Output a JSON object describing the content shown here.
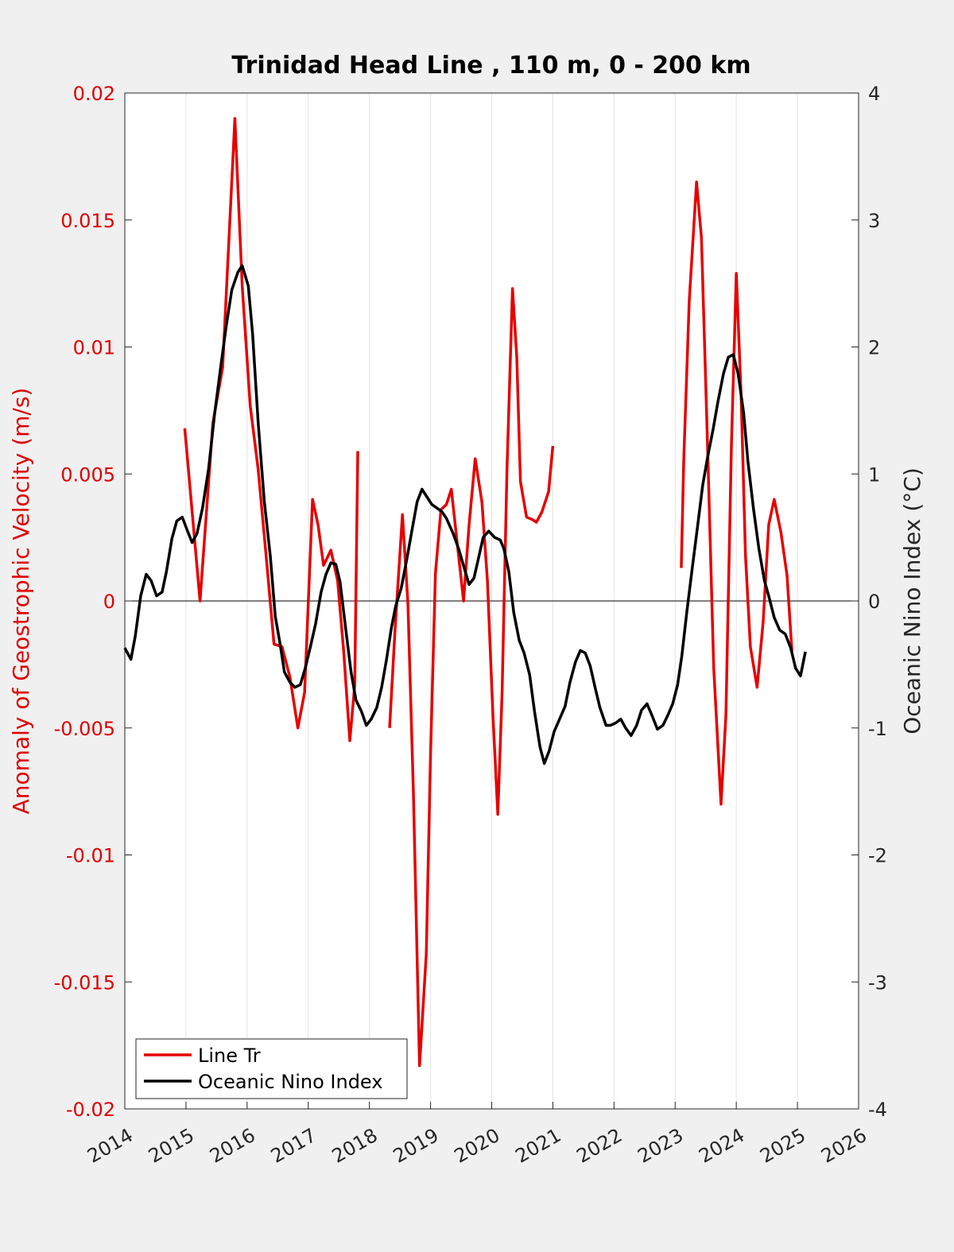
{
  "chart_data": {
    "type": "line",
    "title": "Trinidad Head Line , 110 m, 0 - 200 km",
    "ylabel": "Anomaly of Geostrophic Velocity (m/s)",
    "y2label": "Oceanic Nino Index (°C)",
    "xlim": [
      2014,
      2026
    ],
    "xticks": [
      2014,
      2015,
      2016,
      2017,
      2018,
      2019,
      2020,
      2021,
      2022,
      2023,
      2024,
      2025,
      2026
    ],
    "ylim": [
      -0.02,
      0.02
    ],
    "yticks": [
      -0.02,
      -0.015,
      -0.01,
      -0.005,
      0,
      0.005,
      0.01,
      0.015,
      0.02
    ],
    "y2lim": [
      -4,
      4
    ],
    "y2ticks": [
      -4,
      -3,
      -2,
      -1,
      0,
      1,
      2,
      3,
      4
    ],
    "grid": "x",
    "legend": "lower left",
    "series": [
      {
        "name": "Line Tr",
        "color": "#e60000",
        "axis": "y",
        "x": [
          2014.98,
          2015.23,
          2015.44,
          2015.6,
          2015.8,
          2015.92,
          2016.05,
          2016.18,
          2016.31,
          2016.44,
          2016.57,
          2016.7,
          2016.83,
          2016.94,
          2017.07,
          2017.16,
          2017.25,
          2017.37,
          2017.48,
          2017.58,
          2017.68,
          2017.76,
          2017.81,
          2018.0,
          2018.33,
          2018.42,
          2018.54,
          2018.63,
          2018.72,
          2018.82,
          2018.93,
          2019.0,
          2019.08,
          2019.17,
          2019.26,
          2019.34,
          2019.43,
          2019.54,
          2019.63,
          2019.73,
          2019.84,
          2019.93,
          2020.02,
          2020.1,
          2020.17,
          2020.25,
          2020.34,
          2020.41,
          2020.47,
          2020.57,
          2020.67,
          2020.73,
          2020.82,
          2020.93,
          2021.0,
          2022.0,
          2023.1,
          2023.14,
          2023.23,
          2023.35,
          2023.43,
          2023.53,
          2023.63,
          2023.75,
          2023.83,
          2023.92,
          2024.0,
          2024.08,
          2024.15,
          2024.23,
          2024.34,
          2024.44,
          2024.53,
          2024.62,
          2024.73,
          2024.83,
          2024.91
        ],
        "values": [
          0.0068,
          0,
          0.007,
          0.0092,
          0.019,
          0.0124,
          0.0077,
          0.0052,
          0.0018,
          -0.0017,
          -0.0018,
          -0.003,
          -0.005,
          -0.0036,
          0.004,
          0.003,
          0.0014,
          0.002,
          0.0008,
          -0.002,
          -0.0055,
          -0.0033,
          0.0059,
          null,
          -0.005,
          -0.0011,
          0.0034,
          -0.0001,
          -0.0076,
          -0.0183,
          -0.0139,
          -0.006,
          0.0011,
          0.0036,
          0.0038,
          0.0044,
          0.0024,
          0,
          0.003,
          0.0056,
          0.0039,
          0.0008,
          -0.0045,
          -0.0084,
          -0.0036,
          0.0052,
          0.0123,
          0.0096,
          0.0047,
          0.0033,
          0.0032,
          0.0031,
          0.0035,
          0.0043,
          0.0061,
          null,
          0.0013,
          0.0055,
          0.0118,
          0.0165,
          0.0143,
          0.0061,
          -0.0026,
          -0.008,
          -0.0045,
          0.0061,
          0.0129,
          0.008,
          0.0018,
          -0.0018,
          -0.0034,
          -0.0008,
          0.003,
          0.004,
          0.0027,
          0.001,
          -0.002
        ]
      },
      {
        "name": "Oceanic Nino Index",
        "color": "#000000",
        "axis": "y2",
        "x": [
          2014.0,
          2014.1,
          2014.17,
          2014.26,
          2014.35,
          2014.43,
          2014.52,
          2014.61,
          2014.68,
          2014.77,
          2014.85,
          2014.94,
          2015.01,
          2015.1,
          2015.18,
          2015.27,
          2015.37,
          2015.47,
          2015.57,
          2015.66,
          2015.75,
          2015.85,
          2015.92,
          2016.02,
          2016.09,
          2016.18,
          2016.28,
          2016.38,
          2016.46,
          2016.54,
          2016.61,
          2016.7,
          2016.78,
          2016.87,
          2016.95,
          2017.04,
          2017.12,
          2017.21,
          2017.29,
          2017.37,
          2017.45,
          2017.52,
          2017.61,
          2017.7,
          2017.78,
          2017.87,
          2017.95,
          2018.03,
          2018.12,
          2018.2,
          2018.28,
          2018.36,
          2018.43,
          2018.52,
          2018.62,
          2018.69,
          2018.78,
          2018.86,
          2018.94,
          2019.02,
          2019.11,
          2019.19,
          2019.26,
          2019.37,
          2019.46,
          2019.55,
          2019.63,
          2019.71,
          2019.79,
          2019.86,
          2019.95,
          2020.05,
          2020.14,
          2020.2,
          2020.28,
          2020.36,
          2020.45,
          2020.53,
          2020.62,
          2020.7,
          2020.79,
          2020.86,
          2020.94,
          2021.02,
          2021.11,
          2021.2,
          2021.28,
          2021.37,
          2021.45,
          2021.53,
          2021.61,
          2021.7,
          2021.77,
          2021.87,
          2021.94,
          2022.03,
          2022.11,
          2022.19,
          2022.28,
          2022.37,
          2022.45,
          2022.54,
          2022.62,
          2022.71,
          2022.8,
          2022.88,
          2022.96,
          2023.04,
          2023.11,
          2023.19,
          2023.28,
          2023.37,
          2023.45,
          2023.53,
          2023.62,
          2023.7,
          2023.79,
          2023.87,
          2023.95,
          2024.03,
          2024.12,
          2024.19,
          2024.28,
          2024.37,
          2024.46,
          2024.53,
          2024.62,
          2024.71,
          2024.8,
          2024.89,
          2024.97,
          2025.05,
          2025.13
        ],
        "values": [
          -0.37,
          -0.46,
          -0.28,
          0.04,
          0.21,
          0.16,
          0.04,
          0.07,
          0.23,
          0.49,
          0.63,
          0.66,
          0.57,
          0.46,
          0.53,
          0.73,
          1.04,
          1.48,
          1.85,
          2.17,
          2.45,
          2.59,
          2.64,
          2.48,
          2.1,
          1.41,
          0.79,
          0.35,
          -0.12,
          -0.34,
          -0.56,
          -0.64,
          -0.68,
          -0.66,
          -0.53,
          -0.35,
          -0.18,
          0.07,
          0.21,
          0.3,
          0.29,
          0.15,
          -0.21,
          -0.56,
          -0.78,
          -0.87,
          -0.98,
          -0.93,
          -0.84,
          -0.68,
          -0.46,
          -0.21,
          -0.04,
          0.1,
          0.35,
          0.54,
          0.78,
          0.88,
          0.82,
          0.76,
          0.73,
          0.7,
          0.65,
          0.53,
          0.41,
          0.26,
          0.13,
          0.18,
          0.35,
          0.5,
          0.55,
          0.5,
          0.48,
          0.41,
          0.23,
          -0.09,
          -0.31,
          -0.41,
          -0.58,
          -0.87,
          -1.15,
          -1.28,
          -1.18,
          -1.03,
          -0.93,
          -0.83,
          -0.64,
          -0.48,
          -0.39,
          -0.41,
          -0.51,
          -0.7,
          -0.84,
          -0.98,
          -0.98,
          -0.96,
          -0.93,
          -1.0,
          -1.06,
          -0.98,
          -0.86,
          -0.81,
          -0.9,
          -1.01,
          -0.98,
          -0.9,
          -0.81,
          -0.66,
          -0.43,
          -0.09,
          0.26,
          0.6,
          0.91,
          1.13,
          1.35,
          1.57,
          1.79,
          1.92,
          1.94,
          1.79,
          1.48,
          1.1,
          0.73,
          0.41,
          0.16,
          0.04,
          -0.13,
          -0.23,
          -0.26,
          -0.37,
          -0.53,
          -0.59,
          -0.4
        ]
      }
    ]
  }
}
